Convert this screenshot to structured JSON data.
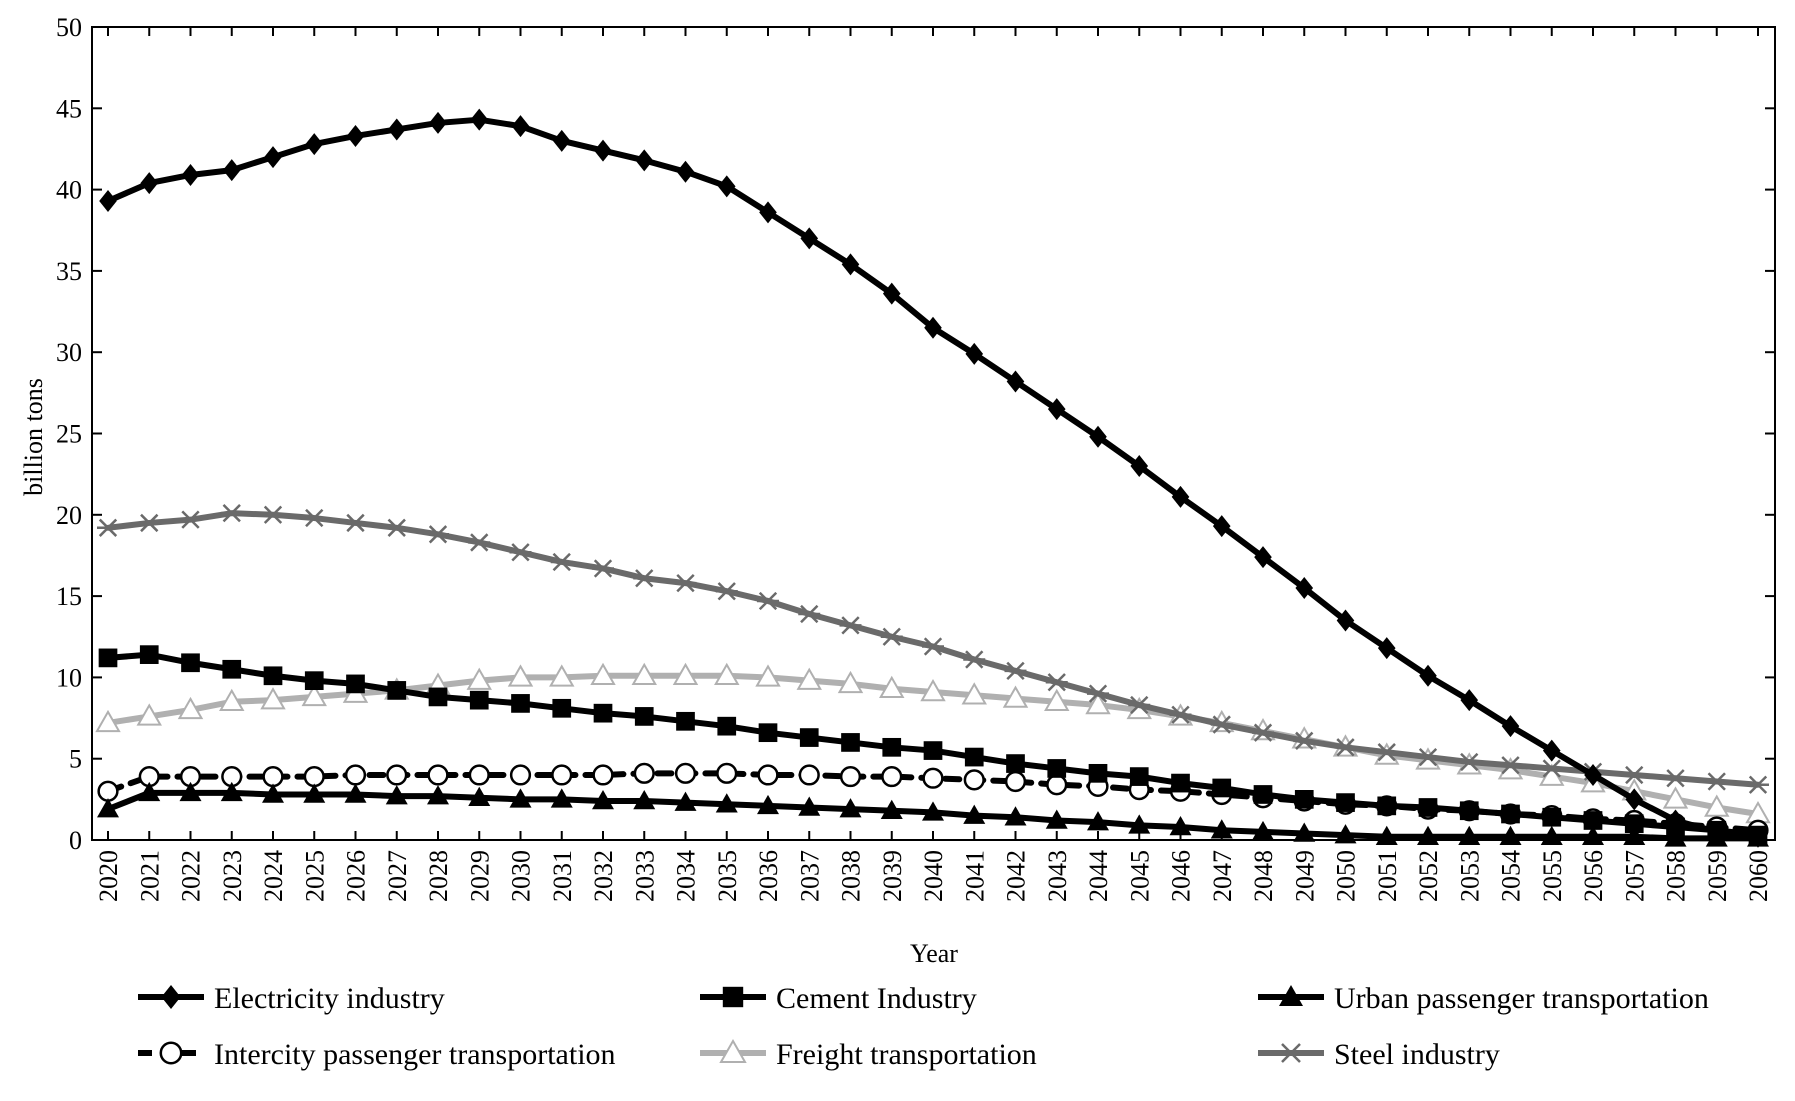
{
  "chart_data": {
    "type": "line",
    "title": "",
    "xlabel": "Year",
    "ylabel": "billion tons",
    "ylim": [
      0,
      50
    ],
    "yticks": [
      0,
      5,
      10,
      15,
      20,
      25,
      30,
      35,
      40,
      45,
      50
    ],
    "grid": false,
    "legend_position": "bottom",
    "x": [
      2020,
      2021,
      2022,
      2023,
      2024,
      2025,
      2026,
      2027,
      2028,
      2029,
      2030,
      2031,
      2032,
      2033,
      2034,
      2035,
      2036,
      2037,
      2038,
      2039,
      2040,
      2041,
      2042,
      2043,
      2044,
      2045,
      2046,
      2047,
      2048,
      2049,
      2050,
      2051,
      2052,
      2053,
      2054,
      2055,
      2056,
      2057,
      2058,
      2059,
      2060
    ],
    "series": [
      {
        "name": "Electricity industry",
        "color": "#000000",
        "marker": "diamond",
        "dashed": false,
        "values": [
          39.3,
          40.4,
          40.9,
          41.2,
          42.0,
          42.8,
          43.3,
          43.7,
          44.1,
          44.3,
          43.9,
          43.0,
          42.4,
          41.8,
          41.1,
          40.2,
          38.6,
          37.0,
          35.4,
          33.6,
          31.5,
          29.9,
          28.2,
          26.5,
          24.8,
          23.0,
          21.1,
          19.3,
          17.4,
          15.5,
          13.5,
          11.8,
          10.1,
          8.6,
          7.0,
          5.5,
          4.0,
          2.5,
          1.2,
          0.5,
          0.2
        ]
      },
      {
        "name": "Cement Industry",
        "color": "#000000",
        "marker": "square",
        "dashed": false,
        "values": [
          11.2,
          11.4,
          10.9,
          10.5,
          10.1,
          9.8,
          9.6,
          9.2,
          8.8,
          8.6,
          8.4,
          8.1,
          7.8,
          7.6,
          7.3,
          7.0,
          6.6,
          6.3,
          6.0,
          5.7,
          5.5,
          5.1,
          4.7,
          4.4,
          4.1,
          3.9,
          3.5,
          3.2,
          2.8,
          2.5,
          2.3,
          2.1,
          2.0,
          1.8,
          1.6,
          1.4,
          1.2,
          1.0,
          0.8,
          0.6,
          0.3
        ]
      },
      {
        "name": "Urban passenger transportation",
        "color": "#000000",
        "marker": "triangle",
        "dashed": false,
        "values": [
          1.9,
          2.9,
          2.9,
          2.9,
          2.8,
          2.8,
          2.8,
          2.7,
          2.7,
          2.6,
          2.5,
          2.5,
          2.4,
          2.4,
          2.3,
          2.2,
          2.1,
          2.0,
          1.9,
          1.8,
          1.7,
          1.5,
          1.4,
          1.2,
          1.1,
          0.9,
          0.8,
          0.6,
          0.5,
          0.4,
          0.3,
          0.2,
          0.2,
          0.2,
          0.2,
          0.2,
          0.2,
          0.2,
          0.1,
          0.1,
          0.1
        ]
      },
      {
        "name": "Intercity passenger transportation",
        "color": "#000000",
        "marker": "circle",
        "dashed": true,
        "values": [
          3.0,
          3.9,
          3.9,
          3.9,
          3.9,
          3.9,
          4.0,
          4.0,
          4.0,
          4.0,
          4.0,
          4.0,
          4.0,
          4.1,
          4.1,
          4.1,
          4.0,
          4.0,
          3.9,
          3.9,
          3.8,
          3.7,
          3.6,
          3.4,
          3.3,
          3.1,
          3.0,
          2.8,
          2.6,
          2.4,
          2.2,
          2.1,
          1.9,
          1.8,
          1.6,
          1.5,
          1.3,
          1.2,
          1.0,
          0.8,
          0.6
        ]
      },
      {
        "name": "Freight transportation",
        "color": "#b0b0b0",
        "marker": "triangle-open",
        "dashed": false,
        "values": [
          7.2,
          7.6,
          8.0,
          8.5,
          8.6,
          8.8,
          9.0,
          9.2,
          9.5,
          9.8,
          10.0,
          10.0,
          10.1,
          10.1,
          10.1,
          10.1,
          10.0,
          9.8,
          9.6,
          9.3,
          9.1,
          8.9,
          8.7,
          8.5,
          8.3,
          8.0,
          7.6,
          7.2,
          6.7,
          6.2,
          5.7,
          5.2,
          4.9,
          4.6,
          4.3,
          3.9,
          3.5,
          3.0,
          2.5,
          2.0,
          1.6
        ]
      },
      {
        "name": "Steel industry",
        "color": "#6a6a6a",
        "marker": "x",
        "dashed": false,
        "values": [
          19.2,
          19.5,
          19.7,
          20.1,
          20.0,
          19.8,
          19.5,
          19.2,
          18.8,
          18.3,
          17.7,
          17.1,
          16.7,
          16.1,
          15.8,
          15.3,
          14.7,
          13.9,
          13.2,
          12.5,
          11.9,
          11.1,
          10.4,
          9.7,
          9.0,
          8.3,
          7.7,
          7.1,
          6.6,
          6.1,
          5.7,
          5.4,
          5.1,
          4.8,
          4.6,
          4.4,
          4.2,
          4.0,
          3.8,
          3.6,
          3.4
        ]
      }
    ]
  }
}
